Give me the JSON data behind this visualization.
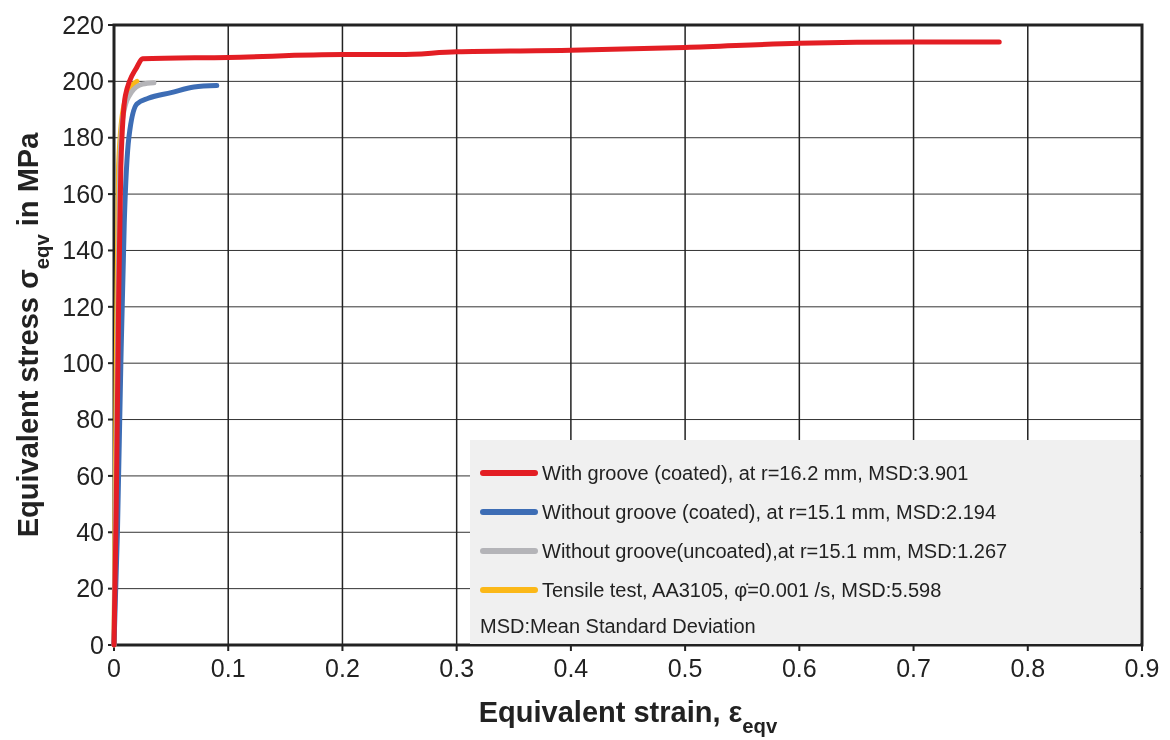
{
  "chart_data": {
    "type": "line",
    "xlabel": "Equivalent strain, ε$_{eqv}$",
    "ylabel": "Equivalent stress σ$_{eqv}$ in MPa",
    "xlim": [
      0,
      0.9
    ],
    "xticks": [
      0,
      0.1,
      0.2,
      0.3,
      0.4,
      0.5,
      0.6,
      0.7,
      0.8,
      0.9
    ],
    "ylim": [
      0,
      220
    ],
    "yticks": [
      0,
      20,
      40,
      60,
      80,
      100,
      120,
      140,
      160,
      180,
      200,
      220
    ],
    "grid": true,
    "legend": "bottom right",
    "line_style": "solid",
    "annotations": [
      "MSD:Mean Standard Deviation"
    ],
    "series": [
      {
        "name": "With groove (coated), at r=16.2 mm, MSD:3.901",
        "color": "#e31e24",
        "x": [
          0,
          0.002,
          0.004,
          0.006,
          0.01,
          0.02,
          0.025,
          0.1,
          0.2,
          0.25,
          0.3,
          0.4,
          0.5,
          0.6,
          0.7,
          0.775
        ],
        "values": [
          0,
          50,
          120,
          170,
          195,
          205,
          208,
          208.5,
          209.5,
          209.5,
          210.5,
          211,
          212,
          213.5,
          214,
          214
        ]
      },
      {
        "name": "Without groove (coated), at r=15.1 mm, MSD:2.194",
        "color": "#3d6db5",
        "x": [
          0,
          0.003,
          0.006,
          0.009,
          0.013,
          0.02,
          0.03,
          0.05,
          0.07,
          0.09
        ],
        "values": [
          0,
          40,
          100,
          150,
          180,
          192,
          194,
          196,
          198,
          198.5
        ]
      },
      {
        "name": "Without groove(uncoated),at r=15.1 mm, MSD:1.267",
        "color": "#b4b4b8",
        "x": [
          0,
          0.003,
          0.005,
          0.008,
          0.015,
          0.025,
          0.035
        ],
        "values": [
          0,
          100,
          170,
          188,
          196,
          199,
          199.5
        ]
      },
      {
        "name": "Tensile test, AA3105, φ̇=0.001 /s, MSD:5.598",
        "color": "#fbb818",
        "x": [
          0,
          0.002,
          0.004,
          0.008,
          0.015,
          0.02
        ],
        "values": [
          0,
          100,
          170,
          190,
          198,
          200
        ]
      }
    ]
  }
}
